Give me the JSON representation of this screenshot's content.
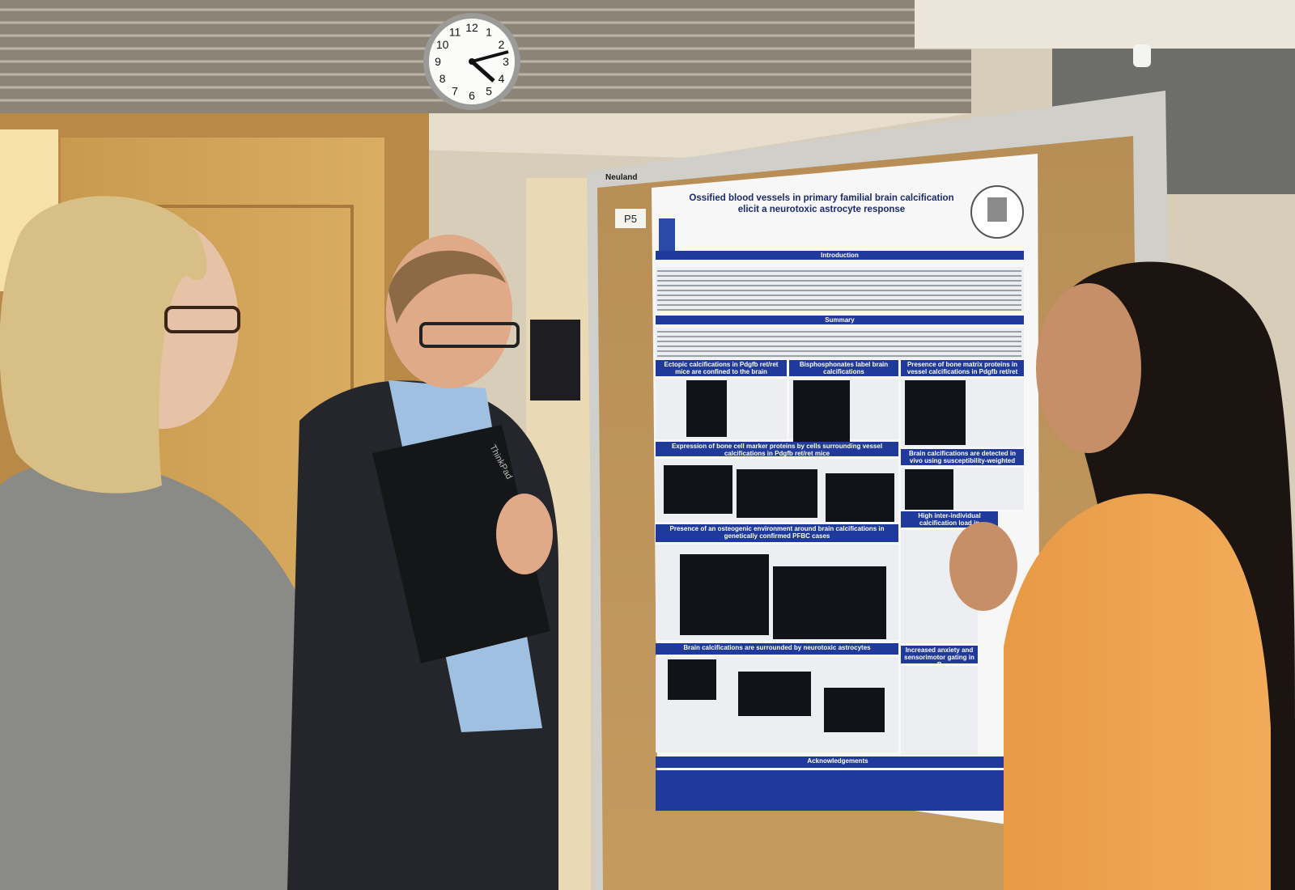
{
  "brand": "Neuland",
  "board_label": "P5",
  "laptop": "ThinkPad",
  "clock": {
    "numbers": [
      "12",
      "1",
      "2",
      "3",
      "4",
      "5",
      "6",
      "7",
      "8",
      "9",
      "10",
      "11"
    ]
  },
  "poster": {
    "title": "Ossified blood vessels in primary familial brain calcification elicit a neurotoxic astrocyte response",
    "sections": [
      "Introduction",
      "Summary",
      "Ectopic calcifications in Pdgfb ret/ret mice are confined to the brain",
      "Bisphosphonates label brain calcifications",
      "Presence of bone matrix proteins in vessel calcifications in Pdgfb ret/ret mice",
      "Expression of bone cell marker proteins by cells surrounding vessel calcifications in Pdgfb ret/ret mice",
      "Brain calcifications are detected in vivo using susceptibility-weighted imaging (SWI)",
      "Presence of an osteogenic environment around brain calcifications in genetically confirmed PFBC cases",
      "High inter-individual calcification load in",
      "Brain calcifications are surrounded by neurotoxic astrocytes",
      "Increased anxiety and sensorimotor gating in P",
      "Acknowledgements"
    ]
  }
}
